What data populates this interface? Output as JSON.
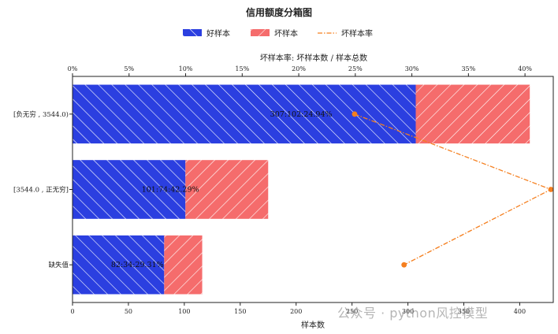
{
  "watermark": "公众号 · python风控模型",
  "chart_data": {
    "type": "bar",
    "orientation": "horizontal",
    "stacked": true,
    "title": "信用额度分箱图",
    "xlabel": "样本数",
    "secondary_xlabel": "坏样本率: 坏样本数 / 样本总数",
    "categories": [
      "[负无穷 , 3544.0)",
      "[3544.0 , 正无穷]",
      "缺失值"
    ],
    "series": [
      {
        "name": "好样本",
        "values": [
          307,
          101,
          82
        ],
        "color": "#2b3fe0",
        "hatch": "//"
      },
      {
        "name": "坏样本",
        "values": [
          102,
          74,
          34
        ],
        "color": "#f56c6c",
        "hatch": "\\\\"
      }
    ],
    "rate_series": {
      "name": "坏样本率",
      "values": [
        24.94,
        42.29,
        29.31
      ],
      "color": "#f57f1f",
      "style": "dashdot"
    },
    "bar_labels": [
      "307:102:24.94%",
      "101:74:42.29%",
      "82:34:29.31%"
    ],
    "xlim": [
      0,
      430
    ],
    "xticks": [
      "0",
      "50",
      "100",
      "150",
      "200",
      "250",
      "300",
      "350",
      "400"
    ],
    "secondary_xlim": [
      0,
      42.5
    ],
    "secondary_xticks": [
      "0%",
      "5%",
      "10%",
      "15%",
      "20%",
      "25%",
      "30%",
      "35%",
      "40%"
    ],
    "legend_position": "top-center",
    "grid": false
  }
}
